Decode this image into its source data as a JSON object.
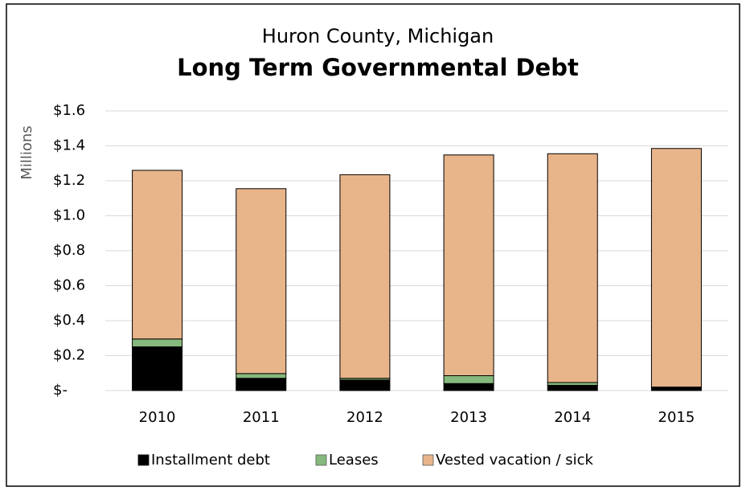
{
  "chart_data": {
    "type": "stacked_bar",
    "title": "Huron County, Michigan",
    "subtitle": "Long Term Governmental Debt",
    "y_label": "Millions",
    "categories": [
      "2010",
      "2011",
      "2012",
      "2013",
      "2014",
      "2015"
    ],
    "series": [
      {
        "name": "Installment debt",
        "color": "#000000",
        "values": [
          0.25,
          0.07,
          0.06,
          0.04,
          0.03,
          0.015
        ]
      },
      {
        "name": "Leases",
        "color": "#86b97d",
        "values": [
          0.045,
          0.027,
          0.01,
          0.045,
          0.016,
          0.005
        ]
      },
      {
        "name": "Vested vacation / sick",
        "color": "#e8b48a",
        "values": [
          0.965,
          1.058,
          1.165,
          1.263,
          1.309,
          1.365
        ]
      }
    ],
    "ylim": [
      0,
      1.6
    ],
    "yticks": [
      {
        "value": 0,
        "label": "$-"
      },
      {
        "value": 0.2,
        "label": "$0.2"
      },
      {
        "value": 0.4,
        "label": "$0.4"
      },
      {
        "value": 0.6,
        "label": "$0.6"
      },
      {
        "value": 0.8,
        "label": "$0.8"
      },
      {
        "value": 1.0,
        "label": "$1.0"
      },
      {
        "value": 1.2,
        "label": "$1.2"
      },
      {
        "value": 1.4,
        "label": "$1.4"
      },
      {
        "value": 1.6,
        "label": "$1.6"
      }
    ],
    "grid": true,
    "legend": "bottom"
  }
}
